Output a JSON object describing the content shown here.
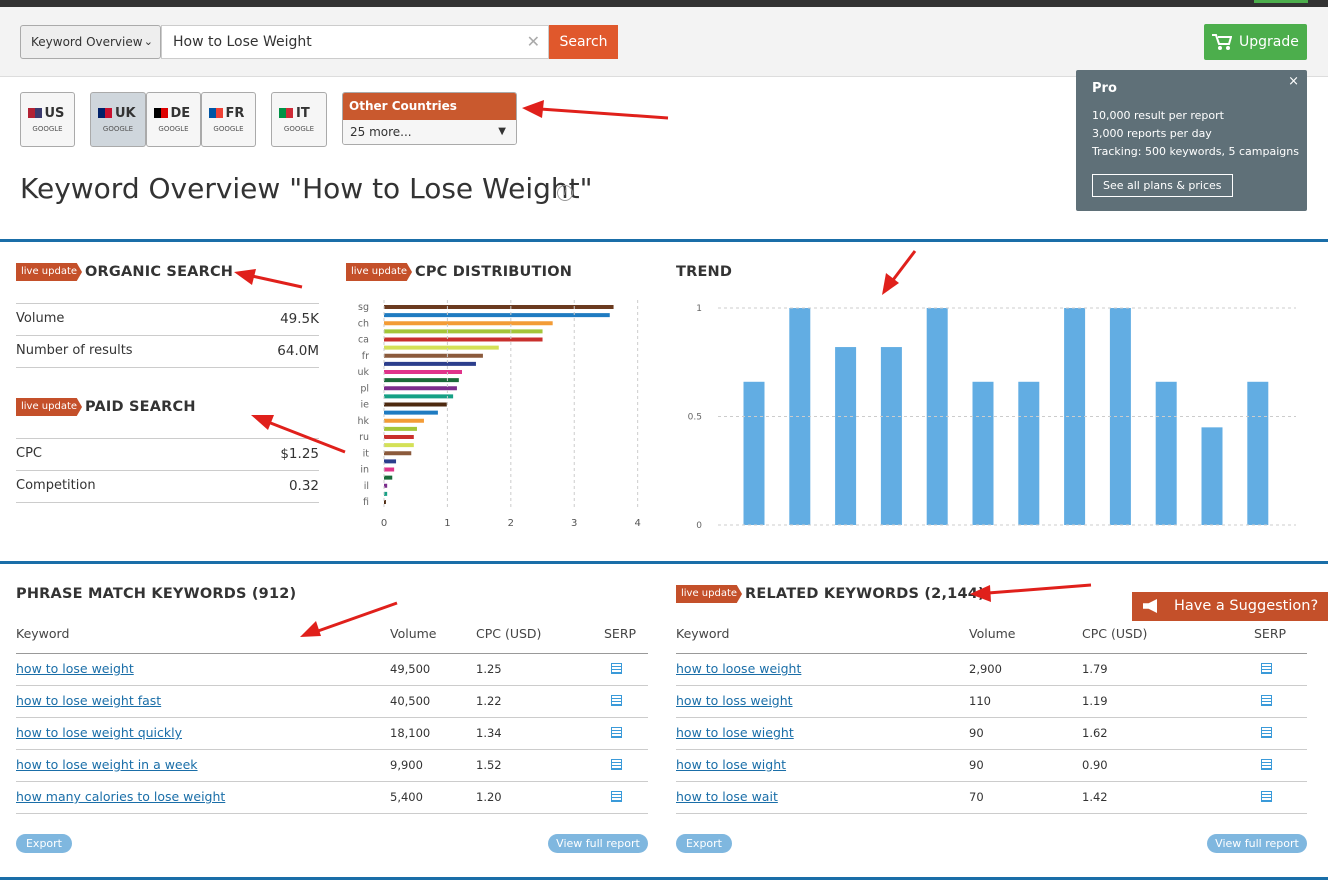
{
  "toolbar": {
    "mode": "Keyword Overview",
    "query": "How to Lose Weight",
    "search": "Search",
    "upgrade": "Upgrade"
  },
  "countries": [
    {
      "code": "US",
      "engine": "GOOGLE"
    },
    {
      "code": "UK",
      "engine": "GOOGLE"
    },
    {
      "code": "DE",
      "engine": "GOOGLE"
    },
    {
      "code": "FR",
      "engine": "GOOGLE"
    },
    {
      "code": "IT",
      "engine": "GOOGLE"
    }
  ],
  "other_countries": {
    "title": "Other Countries",
    "more": "25 more..."
  },
  "popup": {
    "title": "Pro",
    "lines": [
      "10,000 result per report",
      "3,000 reports per day",
      "Tracking: 500 keywords, 5 campaigns"
    ],
    "button": "See all plans & prices"
  },
  "heading": "Keyword Overview \"How to Lose Weight\"",
  "badge": "live update",
  "organic": {
    "title": "ORGANIC SEARCH",
    "rows": [
      [
        "Volume",
        "49.5K"
      ],
      [
        "Number of results",
        "64.0M"
      ]
    ]
  },
  "paid": {
    "title": "PAID SEARCH",
    "rows": [
      [
        "CPC",
        "$1.25"
      ],
      [
        "Competition",
        "0.32"
      ]
    ]
  },
  "chart_data": [
    {
      "type": "bar",
      "orientation": "horizontal",
      "title": "CPC DISTRIBUTION",
      "categories": [
        "sg",
        null,
        "ch",
        null,
        "ca",
        null,
        "fr",
        null,
        "uk",
        null,
        "pl",
        null,
        "ie",
        null,
        "hk",
        null,
        "ru",
        null,
        "it",
        null,
        "in",
        null,
        "il",
        null,
        "fi"
      ],
      "values": [
        3.62,
        3.56,
        2.66,
        2.5,
        2.5,
        1.81,
        1.56,
        1.45,
        1.23,
        1.18,
        1.15,
        1.09,
        0.99,
        0.85,
        0.63,
        0.52,
        0.47,
        0.47,
        0.43,
        0.19,
        0.16,
        0.13,
        0.05,
        0.05,
        0.03
      ],
      "colors": [
        "#6b3a1f",
        "#1f7bc1",
        "#f39c36",
        "#a4c639",
        "#c9302c",
        "#d4e157",
        "#8b5a3c",
        "#2c3e8c",
        "#e0338a",
        "#1b6b3a",
        "#7b2d8c",
        "#16a085",
        "#4e2a10",
        "#1f7bc1",
        "#f39c36",
        "#a4c639",
        "#c9302c",
        "#d4e157",
        "#8b5a3c",
        "#2c3e8c",
        "#e0338a",
        "#1b6b3a",
        "#7b2d8c",
        "#16a085",
        "#4e2a10"
      ],
      "xlim": [
        0,
        4.1
      ],
      "xticks": [
        0,
        1,
        2,
        3,
        4
      ],
      "grid": true
    },
    {
      "type": "bar",
      "title": "TREND",
      "values": [
        0.66,
        1,
        0.82,
        0.82,
        1,
        0.66,
        0.66,
        1,
        1,
        0.66,
        0.45,
        0.66
      ],
      "color": "#62ade3",
      "ylim": [
        0,
        1
      ],
      "yticks": [
        0,
        0.5,
        1
      ],
      "grid": true
    }
  ],
  "phrase": {
    "title": "PHRASE MATCH KEYWORDS (912)",
    "columns": [
      "Keyword",
      "Volume",
      "CPC (USD)",
      "SERP"
    ],
    "rows": [
      [
        "how to lose weight",
        "49,500",
        "1.25"
      ],
      [
        "how to lose weight fast",
        "40,500",
        "1.22"
      ],
      [
        "how to lose weight quickly",
        "18,100",
        "1.34"
      ],
      [
        "how to lose weight in a week",
        "9,900",
        "1.52"
      ],
      [
        "how many calories to lose weight",
        "5,400",
        "1.20"
      ]
    ],
    "export": "Export",
    "full": "View full report"
  },
  "related": {
    "title": "RELATED KEYWORDS (2,144)",
    "columns": [
      "Keyword",
      "Volume",
      "CPC (USD)",
      "SERP"
    ],
    "rows": [
      [
        "how to loose weight",
        "2,900",
        "1.79"
      ],
      [
        "how to loss weight",
        "110",
        "1.19"
      ],
      [
        "how to lose wieght",
        "90",
        "1.62"
      ],
      [
        "how to lose wight",
        "90",
        "0.90"
      ],
      [
        "how to lose wait",
        "70",
        "1.42"
      ]
    ],
    "export": "Export",
    "full": "View full report"
  },
  "suggestion": "Have a Suggestion?"
}
